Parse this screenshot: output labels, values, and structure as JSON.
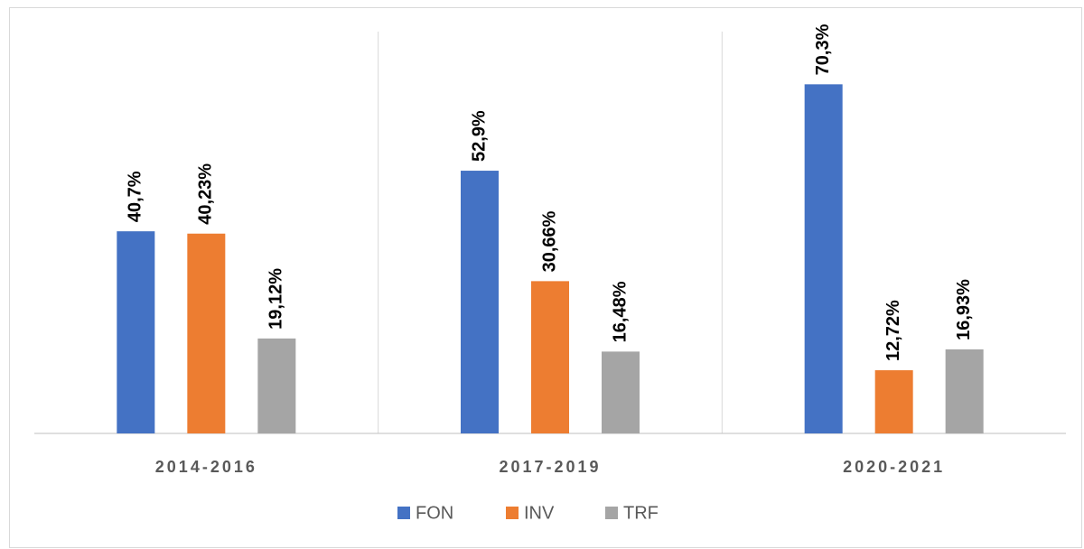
{
  "chart_data": {
    "type": "bar",
    "categories": [
      "2014-2016",
      "2017-2019",
      "2020-2021"
    ],
    "series": [
      {
        "name": "FON",
        "color": "#4472c4",
        "values": [
          40.7,
          52.9,
          70.3
        ],
        "value_labels": [
          "40,7%",
          "52,9%",
          "70,3%"
        ]
      },
      {
        "name": "INV",
        "color": "#ed7d31",
        "values": [
          40.23,
          30.66,
          12.72
        ],
        "value_labels": [
          "40,23%",
          "30,66%",
          "12,72%"
        ]
      },
      {
        "name": "TRF",
        "color": "#a5a5a5",
        "values": [
          19.12,
          16.48,
          16.93
        ],
        "value_labels": [
          "19,12%",
          "16,48%",
          "16,93%"
        ]
      }
    ],
    "ylim": [
      0,
      80
    ],
    "legend": "bottom"
  }
}
